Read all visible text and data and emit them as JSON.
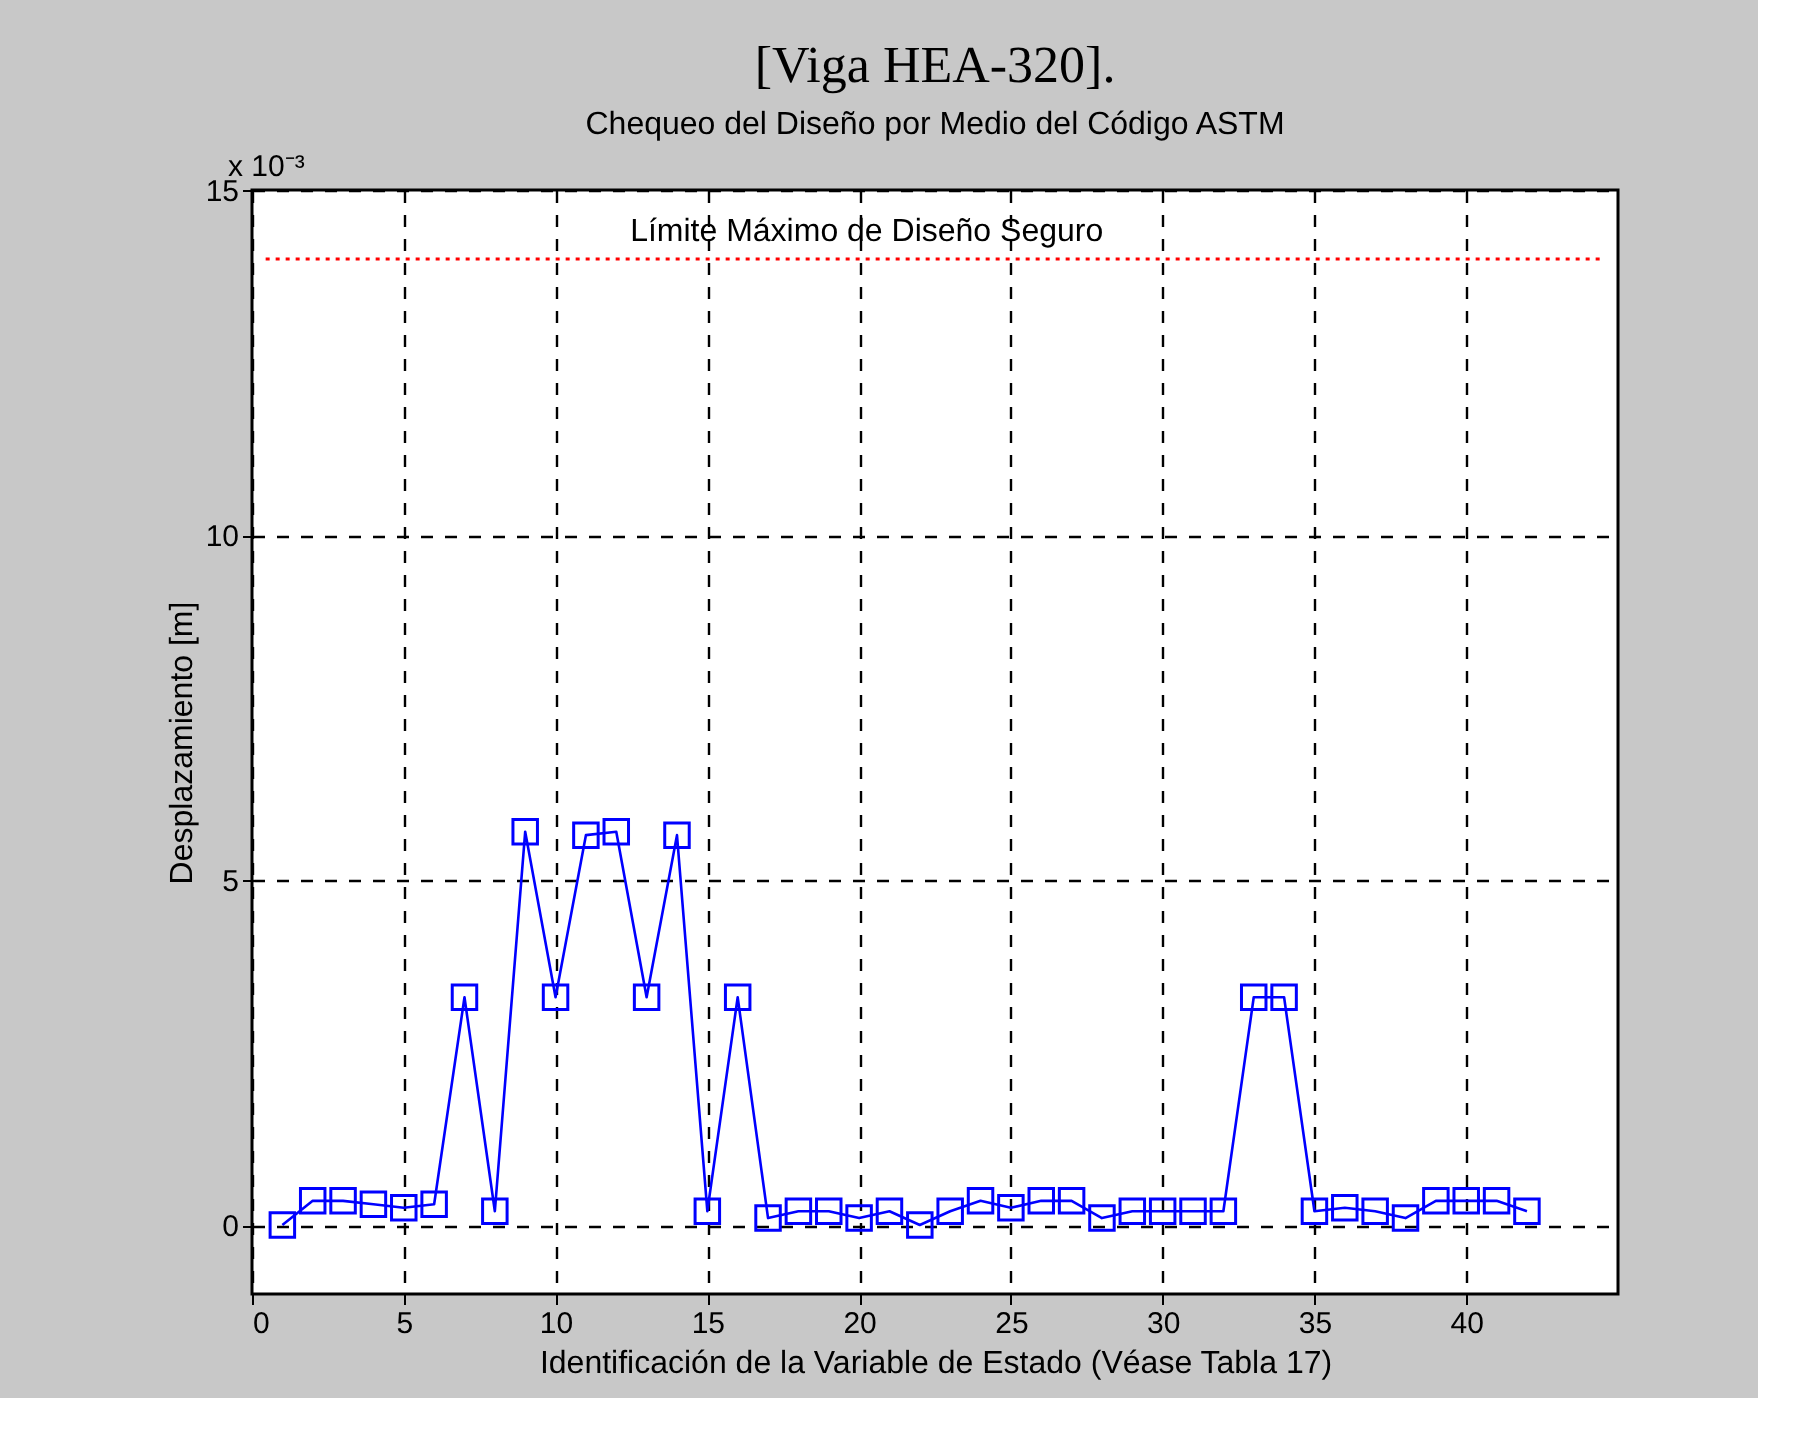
{
  "chart_data": {
    "type": "line",
    "title": "Chequeo del Diseño por Medio del Código ASTM",
    "xlabel": "Identificación de la Variable de Estado (Véase Tabla 17)",
    "ylabel": "Desplazamiento [m]",
    "annotations": [
      "[Viga HEA-320].",
      "x 10⁻³"
    ],
    "x": [
      1,
      2,
      3,
      4,
      5,
      6,
      7,
      8,
      9,
      10,
      11,
      12,
      13,
      14,
      15,
      16,
      17,
      18,
      19,
      20,
      21,
      22,
      23,
      24,
      25,
      26,
      27,
      28,
      29,
      30,
      31,
      32,
      33,
      34,
      35,
      36,
      37,
      38,
      39,
      40,
      41,
      42
    ],
    "series": [
      {
        "color": "#0000ff",
        "values": [
          0,
          0.35,
          0.35,
          0.3,
          0.25,
          0.3,
          3.3,
          0.2,
          5.7,
          3.3,
          5.65,
          5.7,
          3.3,
          5.65,
          0.2,
          3.3,
          0.1,
          0.2,
          0.2,
          0.1,
          0.2,
          0,
          0.2,
          0.35,
          0.25,
          0.35,
          0.35,
          0.1,
          0.2,
          0.2,
          0.2,
          0.2,
          3.3,
          3.3,
          0.2,
          0.25,
          0.2,
          0.1,
          0.35,
          0.35,
          0.35,
          0.2
        ]
      }
    ],
    "xlim": [
      0,
      45
    ],
    "xticks": [
      0,
      5,
      10,
      15,
      20,
      25,
      30,
      35,
      40
    ],
    "ylim": [
      -1,
      15
    ],
    "yticks": [
      0,
      5,
      10,
      15
    ],
    "ref_lines": [
      {
        "axis": "y",
        "value": 14,
        "label": "Límite Máximo de Diseño Seguro",
        "color": "#ff0000",
        "line_style": "dotted"
      }
    ],
    "grid": true,
    "marker": "square",
    "line_style": "solid"
  }
}
